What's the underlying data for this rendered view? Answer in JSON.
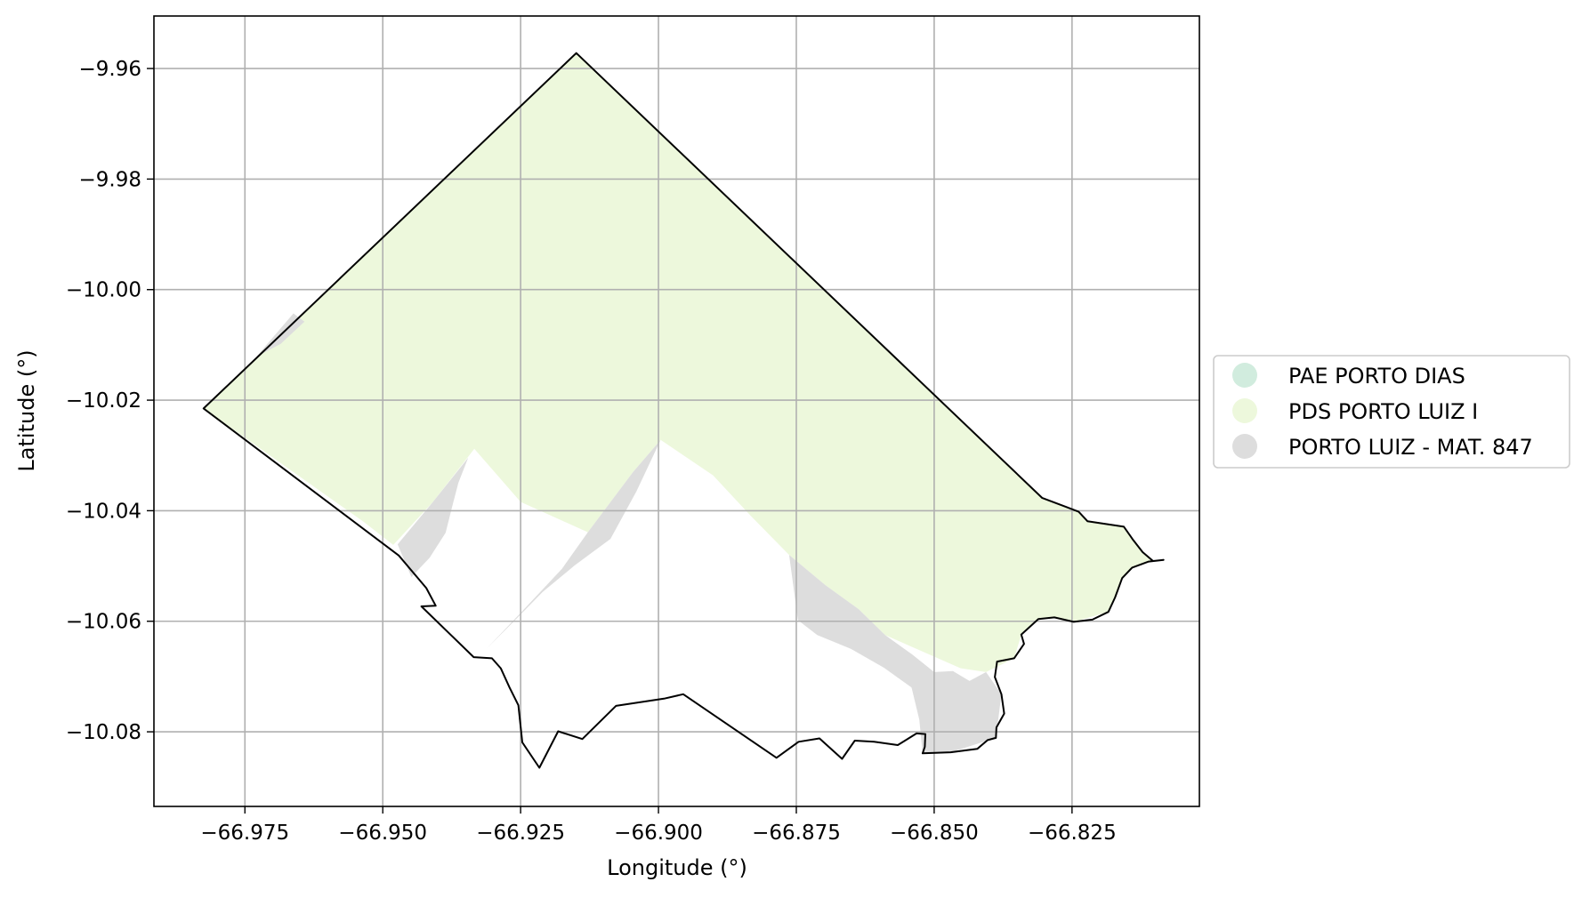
{
  "chart_data": {
    "type": "map",
    "xlabel": "Longitude (°)",
    "ylabel": "Latitude (°)",
    "xlim": [
      -66.9915,
      -66.8019
    ],
    "ylim": [
      -10.0935,
      -9.9505
    ],
    "x_ticks": [
      -66.975,
      -66.95,
      -66.925,
      -66.9,
      -66.875,
      -66.85,
      -66.825
    ],
    "x_tick_labels": [
      "−66.975",
      "−66.950",
      "−66.925",
      "−66.900",
      "−66.875",
      "−66.850",
      "−66.825"
    ],
    "y_ticks": [
      -9.96,
      -9.98,
      -10.0,
      -10.02,
      -10.04,
      -10.06,
      -10.08
    ],
    "y_tick_labels": [
      "−9.96",
      "−9.98",
      "−10.00",
      "−10.02",
      "−10.04",
      "−10.06",
      "−10.08"
    ],
    "grid": true,
    "legend_position": "right",
    "series": [
      {
        "name": "PAE PORTO DIAS",
        "color": "#d1ecde"
      },
      {
        "name": "PDS PORTO LUIZ I",
        "color": "#edf8dc"
      },
      {
        "name": "PORTO LUIZ - MAT. 847",
        "color": "#dddddd"
      }
    ],
    "boundary_color": "#000000",
    "boundary": [
      [
        -66.9825,
        -10.0215
      ],
      [
        -66.9149,
        -9.9572
      ],
      [
        -66.8304,
        -10.0377
      ],
      [
        -66.8261,
        -10.0393
      ],
      [
        -66.8238,
        -10.0402
      ],
      [
        -66.8222,
        -10.0419
      ],
      [
        -66.8156,
        -10.0429
      ],
      [
        -66.8139,
        -10.0453
      ],
      [
        -66.8122,
        -10.0475
      ],
      [
        -66.8103,
        -10.0491
      ],
      [
        -66.8084,
        -10.0489
      ],
      [
        -66.8111,
        -10.0492
      ],
      [
        -66.8141,
        -10.0503
      ],
      [
        -66.8159,
        -10.0522
      ],
      [
        -66.8172,
        -10.0557
      ],
      [
        -66.8184,
        -10.0583
      ],
      [
        -66.8213,
        -10.0597
      ],
      [
        -66.8247,
        -10.0601
      ],
      [
        -66.8282,
        -10.0593
      ],
      [
        -66.8311,
        -10.0596
      ],
      [
        -66.8342,
        -10.0624
      ],
      [
        -66.8337,
        -10.0641
      ],
      [
        -66.8355,
        -10.0667
      ],
      [
        -66.8386,
        -10.0673
      ],
      [
        -66.839,
        -10.0701
      ],
      [
        -66.8378,
        -10.0732
      ],
      [
        -66.8373,
        -10.0767
      ],
      [
        -66.8387,
        -10.0792
      ],
      [
        -66.8388,
        -10.0811
      ],
      [
        -66.8403,
        -10.0815
      ],
      [
        -66.8422,
        -10.0831
      ],
      [
        -66.847,
        -10.0837
      ],
      [
        -66.8521,
        -10.0839
      ],
      [
        -66.8517,
        -10.0827
      ],
      [
        -66.8516,
        -10.0804
      ],
      [
        -66.8532,
        -10.0803
      ],
      [
        -66.8566,
        -10.0824
      ],
      [
        -66.8609,
        -10.0818
      ],
      [
        -66.8644,
        -10.0816
      ],
      [
        -66.8667,
        -10.0849
      ],
      [
        -66.8708,
        -10.0812
      ],
      [
        -66.8746,
        -10.0818
      ],
      [
        -66.8786,
        -10.0847
      ],
      [
        -66.8955,
        -10.0732
      ],
      [
        -66.899,
        -10.074
      ],
      [
        -66.9077,
        -10.0753
      ],
      [
        -66.9138,
        -10.0813
      ],
      [
        -66.9182,
        -10.0799
      ],
      [
        -66.9216,
        -10.0865
      ],
      [
        -66.9247,
        -10.0819
      ],
      [
        -66.9254,
        -10.0752
      ],
      [
        -66.927,
        -10.072
      ],
      [
        -66.9286,
        -10.0685
      ],
      [
        -66.9302,
        -10.0667
      ],
      [
        -66.9335,
        -10.0665
      ],
      [
        -66.943,
        -10.0573
      ],
      [
        -66.9404,
        -10.0572
      ],
      [
        -66.9421,
        -10.054
      ],
      [
        -66.9471,
        -10.0481
      ],
      [
        -66.9825,
        -10.0215
      ]
    ],
    "regions": [
      {
        "series": "PDS PORTO LUIZ I",
        "coords": [
          [
            -66.9825,
            -10.0215
          ],
          [
            -66.9149,
            -9.9572
          ],
          [
            -66.8304,
            -10.0377
          ],
          [
            -66.8238,
            -10.0402
          ],
          [
            -66.8222,
            -10.0419
          ],
          [
            -66.8156,
            -10.0429
          ],
          [
            -66.8122,
            -10.0475
          ],
          [
            -66.8103,
            -10.0491
          ],
          [
            -66.8141,
            -10.0503
          ],
          [
            -66.8159,
            -10.0522
          ],
          [
            -66.8184,
            -10.0583
          ],
          [
            -66.8247,
            -10.0601
          ],
          [
            -66.8282,
            -10.0593
          ],
          [
            -66.8311,
            -10.0596
          ],
          [
            -66.8342,
            -10.0624
          ],
          [
            -66.8355,
            -10.0667
          ],
          [
            -66.8406,
            -10.0692
          ],
          [
            -66.8452,
            -10.0685
          ],
          [
            -66.8589,
            -10.0625
          ],
          [
            -66.8637,
            -10.0578
          ],
          [
            -66.8697,
            -10.0535
          ],
          [
            -66.8763,
            -10.048
          ],
          [
            -66.8832,
            -10.041
          ],
          [
            -66.8901,
            -10.0336
          ],
          [
            -66.8996,
            -10.0272
          ],
          [
            -66.9046,
            -10.033
          ],
          [
            -66.9128,
            -10.0439
          ],
          [
            -66.925,
            -10.0384
          ],
          [
            -66.9334,
            -10.0288
          ],
          [
            -66.9409,
            -10.0384
          ],
          [
            -66.9481,
            -10.0462
          ],
          [
            -66.9535,
            -10.042
          ],
          [
            -66.9825,
            -10.0215
          ]
        ]
      },
      {
        "series": "PORTO LUIZ - MAT. 847",
        "coords": [
          [
            -66.9729,
            -10.0121
          ],
          [
            -66.9662,
            -10.0043
          ],
          [
            -66.9642,
            -10.0058
          ],
          [
            -66.9685,
            -10.0098
          ],
          [
            -66.9729,
            -10.0121
          ]
        ]
      },
      {
        "series": "PORTO LUIZ - MAT. 847",
        "coords": [
          [
            -66.9473,
            -10.0461
          ],
          [
            -66.9409,
            -10.0384
          ],
          [
            -66.9345,
            -10.0304
          ],
          [
            -66.9363,
            -10.035
          ],
          [
            -66.9374,
            -10.0392
          ],
          [
            -66.9386,
            -10.044
          ],
          [
            -66.9415,
            -10.0485
          ],
          [
            -66.9448,
            -10.052
          ],
          [
            -66.9473,
            -10.0461
          ]
        ]
      },
      {
        "series": "PORTO LUIZ - MAT. 847",
        "coords": [
          [
            -66.9128,
            -10.0439
          ],
          [
            -66.9046,
            -10.033
          ],
          [
            -66.8996,
            -10.0272
          ],
          [
            -66.904,
            -10.0365
          ],
          [
            -66.9087,
            -10.0451
          ],
          [
            -66.9152,
            -10.0499
          ],
          [
            -66.921,
            -10.0547
          ],
          [
            -66.9265,
            -10.0603
          ],
          [
            -66.9312,
            -10.065
          ],
          [
            -66.925,
            -10.0585
          ],
          [
            -66.9175,
            -10.0505
          ],
          [
            -66.9128,
            -10.0439
          ]
        ]
      },
      {
        "series": "PORTO LUIZ - MAT. 847",
        "coords": [
          [
            -66.8763,
            -10.048
          ],
          [
            -66.8697,
            -10.0535
          ],
          [
            -66.8637,
            -10.0578
          ],
          [
            -66.8589,
            -10.0625
          ],
          [
            -66.854,
            -10.066
          ],
          [
            -66.85,
            -10.0692
          ],
          [
            -66.8466,
            -10.069
          ],
          [
            -66.8436,
            -10.0708
          ],
          [
            -66.8406,
            -10.0692
          ],
          [
            -66.8378,
            -10.0732
          ],
          [
            -66.8388,
            -10.0811
          ],
          [
            -66.847,
            -10.0837
          ],
          [
            -66.8521,
            -10.0839
          ],
          [
            -66.8527,
            -10.0778
          ],
          [
            -66.8541,
            -10.072
          ],
          [
            -66.8591,
            -10.0684
          ],
          [
            -66.8651,
            -10.065
          ],
          [
            -66.8712,
            -10.0625
          ],
          [
            -66.8747,
            -10.0598
          ],
          [
            -66.8763,
            -10.048
          ]
        ]
      }
    ]
  }
}
